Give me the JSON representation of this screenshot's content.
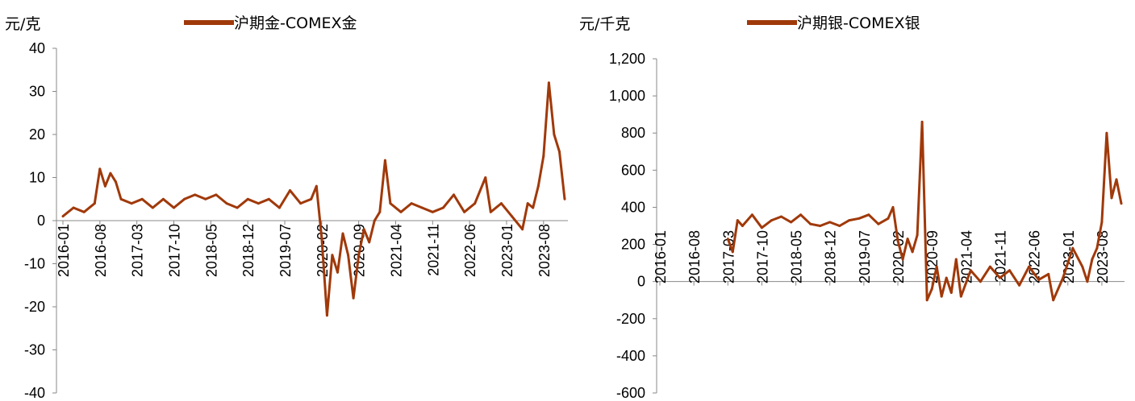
{
  "chart_data": [
    {
      "type": "line",
      "unit_label": "元/克",
      "series": [
        {
          "name": "沪期金-COMEX金",
          "color": "#a0390a"
        }
      ],
      "ylim": [
        -40,
        40
      ],
      "y_ticks": [
        "40",
        "30",
        "20",
        "10",
        "0",
        "-10",
        "-20",
        "-30",
        "-40"
      ],
      "x_ticks": [
        "2016-01",
        "2016-08",
        "2017-03",
        "2017-10",
        "2018-05",
        "2018-12",
        "2019-07",
        "2020-02",
        "2020-09",
        "2021-04",
        "2021-11",
        "2022-06",
        "2023-01",
        "2023-08"
      ],
      "x_range": [
        "2016-01",
        "2023-12"
      ],
      "points": [
        [
          "2016-01",
          1
        ],
        [
          "2016-03",
          3
        ],
        [
          "2016-05",
          2
        ],
        [
          "2016-07",
          4
        ],
        [
          "2016-08",
          12
        ],
        [
          "2016-09",
          8
        ],
        [
          "2016-10",
          11
        ],
        [
          "2016-11",
          9
        ],
        [
          "2016-12",
          5
        ],
        [
          "2017-02",
          4
        ],
        [
          "2017-04",
          5
        ],
        [
          "2017-06",
          3
        ],
        [
          "2017-08",
          5
        ],
        [
          "2017-10",
          3
        ],
        [
          "2017-12",
          5
        ],
        [
          "2018-02",
          6
        ],
        [
          "2018-04",
          5
        ],
        [
          "2018-06",
          6
        ],
        [
          "2018-08",
          4
        ],
        [
          "2018-10",
          3
        ],
        [
          "2018-12",
          5
        ],
        [
          "2019-02",
          4
        ],
        [
          "2019-04",
          5
        ],
        [
          "2019-06",
          3
        ],
        [
          "2019-08",
          7
        ],
        [
          "2019-10",
          4
        ],
        [
          "2019-12",
          5
        ],
        [
          "2020-01",
          8
        ],
        [
          "2020-02",
          -4
        ],
        [
          "2020-03",
          -22
        ],
        [
          "2020-04",
          -8
        ],
        [
          "2020-05",
          -12
        ],
        [
          "2020-06",
          -3
        ],
        [
          "2020-07",
          -8
        ],
        [
          "2020-08",
          -18
        ],
        [
          "2020-09",
          -8
        ],
        [
          "2020-10",
          -2
        ],
        [
          "2020-11",
          -5
        ],
        [
          "2020-12",
          0
        ],
        [
          "2021-01",
          2
        ],
        [
          "2021-02",
          14
        ],
        [
          "2021-03",
          4
        ],
        [
          "2021-05",
          2
        ],
        [
          "2021-07",
          4
        ],
        [
          "2021-09",
          3
        ],
        [
          "2021-11",
          2
        ],
        [
          "2022-01",
          3
        ],
        [
          "2022-03",
          6
        ],
        [
          "2022-05",
          2
        ],
        [
          "2022-07",
          4
        ],
        [
          "2022-09",
          10
        ],
        [
          "2022-10",
          2
        ],
        [
          "2022-12",
          4
        ],
        [
          "2023-02",
          1
        ],
        [
          "2023-04",
          -2
        ],
        [
          "2023-05",
          4
        ],
        [
          "2023-06",
          3
        ],
        [
          "2023-07",
          8
        ],
        [
          "2023-08",
          15
        ],
        [
          "2023-09",
          32
        ],
        [
          "2023-10",
          20
        ],
        [
          "2023-11",
          16
        ],
        [
          "2023-12",
          5
        ]
      ]
    },
    {
      "type": "line",
      "unit_label": "元/千克",
      "series": [
        {
          "name": "沪期银-COMEX银",
          "color": "#a0390a"
        }
      ],
      "ylim": [
        -600,
        1200
      ],
      "y_ticks": [
        "1,200",
        "1,000",
        "800",
        "600",
        "400",
        "200",
        "0",
        "-200",
        "-400",
        "-600"
      ],
      "x_ticks": [
        "2016-01",
        "2016-08",
        "2017-03",
        "2017-10",
        "2018-05",
        "2018-12",
        "2019-07",
        "2020-02",
        "2020-09",
        "2021-04",
        "2021-11",
        "2022-06",
        "2023-01",
        "2023-08"
      ],
      "x_range": [
        "2016-01",
        "2023-12"
      ],
      "points": [
        [
          "2017-03",
          230
        ],
        [
          "2017-04",
          160
        ],
        [
          "2017-05",
          330
        ],
        [
          "2017-06",
          300
        ],
        [
          "2017-08",
          360
        ],
        [
          "2017-10",
          290
        ],
        [
          "2017-12",
          330
        ],
        [
          "2018-02",
          350
        ],
        [
          "2018-04",
          320
        ],
        [
          "2018-06",
          360
        ],
        [
          "2018-08",
          310
        ],
        [
          "2018-10",
          300
        ],
        [
          "2018-12",
          320
        ],
        [
          "2019-02",
          300
        ],
        [
          "2019-04",
          330
        ],
        [
          "2019-06",
          340
        ],
        [
          "2019-08",
          360
        ],
        [
          "2019-10",
          310
        ],
        [
          "2019-12",
          340
        ],
        [
          "2020-01",
          400
        ],
        [
          "2020-02",
          220
        ],
        [
          "2020-03",
          120
        ],
        [
          "2020-04",
          230
        ],
        [
          "2020-05",
          160
        ],
        [
          "2020-06",
          250
        ],
        [
          "2020-07",
          860
        ],
        [
          "2020-08",
          -100
        ],
        [
          "2020-09",
          -40
        ],
        [
          "2020-10",
          80
        ],
        [
          "2020-11",
          -80
        ],
        [
          "2020-12",
          20
        ],
        [
          "2021-01",
          -60
        ],
        [
          "2021-02",
          120
        ],
        [
          "2021-03",
          -80
        ],
        [
          "2021-05",
          60
        ],
        [
          "2021-07",
          0
        ],
        [
          "2021-09",
          80
        ],
        [
          "2021-11",
          20
        ],
        [
          "2022-01",
          60
        ],
        [
          "2022-03",
          -20
        ],
        [
          "2022-05",
          80
        ],
        [
          "2022-07",
          10
        ],
        [
          "2022-09",
          40
        ],
        [
          "2022-10",
          -100
        ],
        [
          "2022-12",
          20
        ],
        [
          "2023-02",
          180
        ],
        [
          "2023-04",
          80
        ],
        [
          "2023-05",
          0
        ],
        [
          "2023-06",
          120
        ],
        [
          "2023-07",
          180
        ],
        [
          "2023-08",
          320
        ],
        [
          "2023-09",
          800
        ],
        [
          "2023-10",
          450
        ],
        [
          "2023-11",
          550
        ],
        [
          "2023-12",
          420
        ]
      ]
    }
  ]
}
